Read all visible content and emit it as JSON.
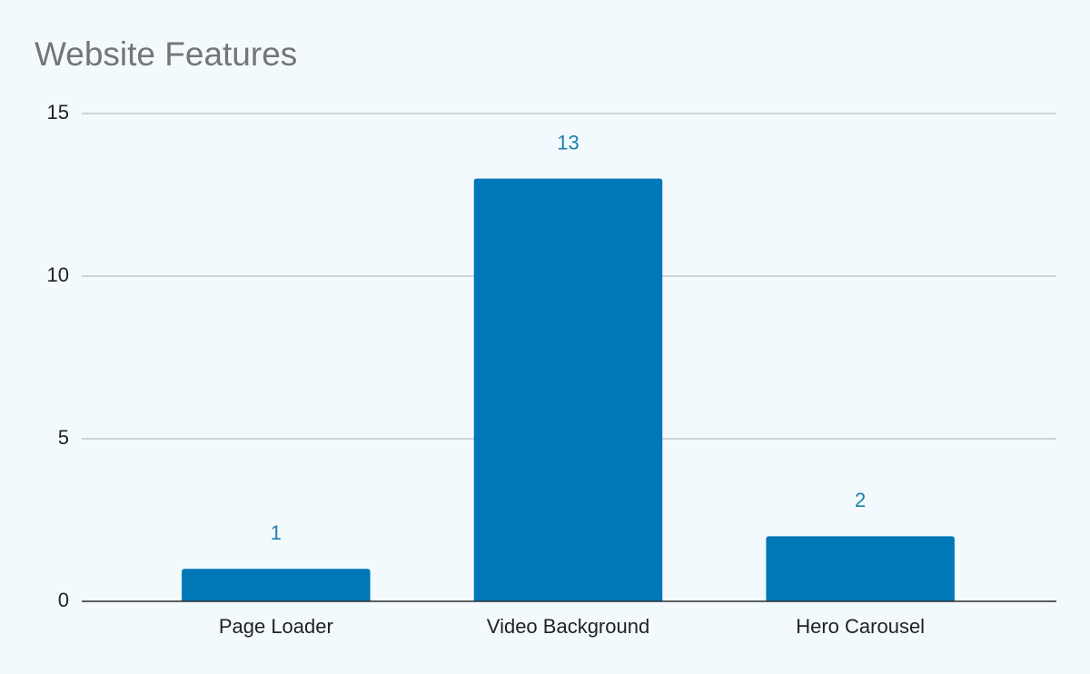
{
  "chart_data": {
    "type": "bar",
    "title": "Website Features",
    "categories": [
      "Page Loader",
      "Video Background",
      "Hero Carousel"
    ],
    "values": [
      1,
      13,
      2
    ],
    "color": "#0077b6",
    "ylim": [
      0,
      15
    ],
    "yticks": [
      0,
      5,
      10,
      15
    ],
    "grid": true
  }
}
